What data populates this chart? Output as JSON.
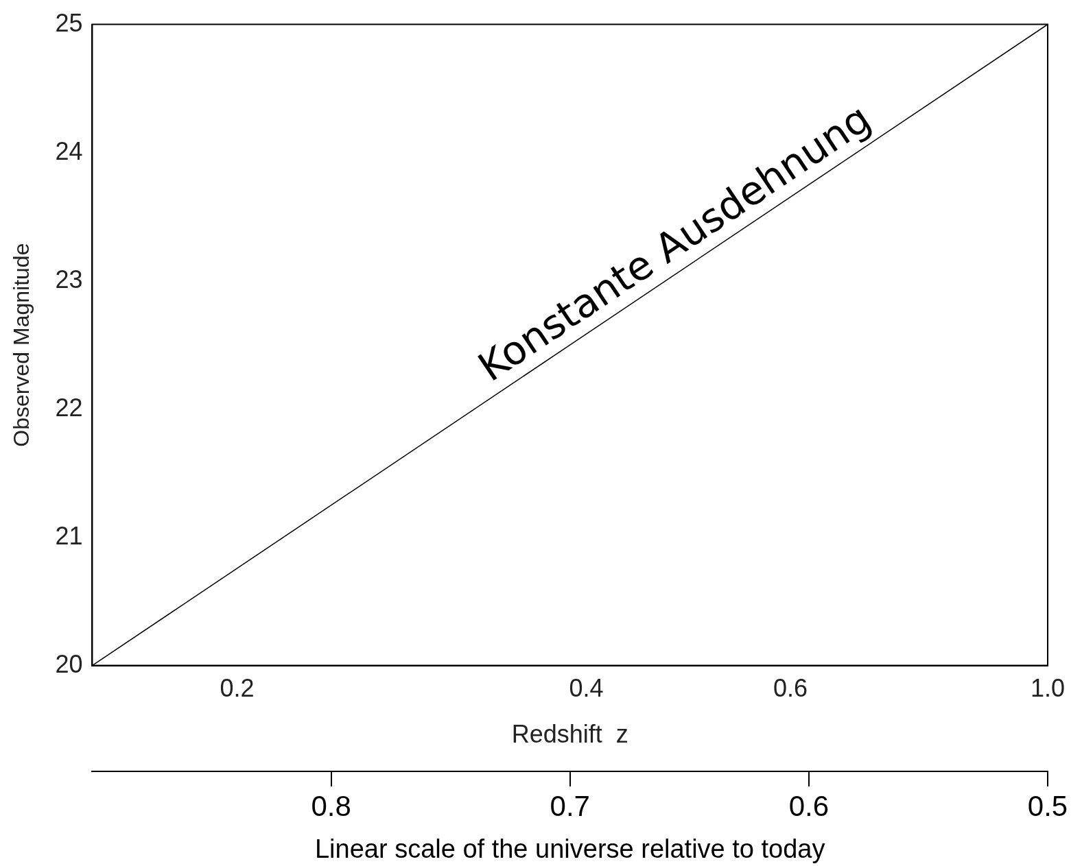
{
  "chart_data": {
    "type": "line",
    "x": [
      0.15,
      1.0
    ],
    "series": [
      {
        "color": "#000000",
        "values": [
          20,
          25
        ]
      }
    ],
    "log": "x",
    "xlim": [
      0.15,
      1.0
    ],
    "xticks": [
      0.2,
      0.4,
      0.6,
      {
        "value": 1.0,
        "label": "1.0"
      }
    ],
    "ylim": [
      20,
      25
    ],
    "yticks": [
      20,
      21,
      22,
      23,
      24,
      25
    ],
    "x2lim": [
      0.9,
      0.5
    ],
    "x2ticks": [
      0.8,
      0.7,
      0.6,
      0.5
    ],
    "xlabel": "Redshift  z",
    "ylabel": "Observed Magnitude",
    "x2label": "Linear scale of the universe relative to today",
    "marker": "none",
    "annotations": [
      "Konstante Ausdehnung"
    ]
  }
}
